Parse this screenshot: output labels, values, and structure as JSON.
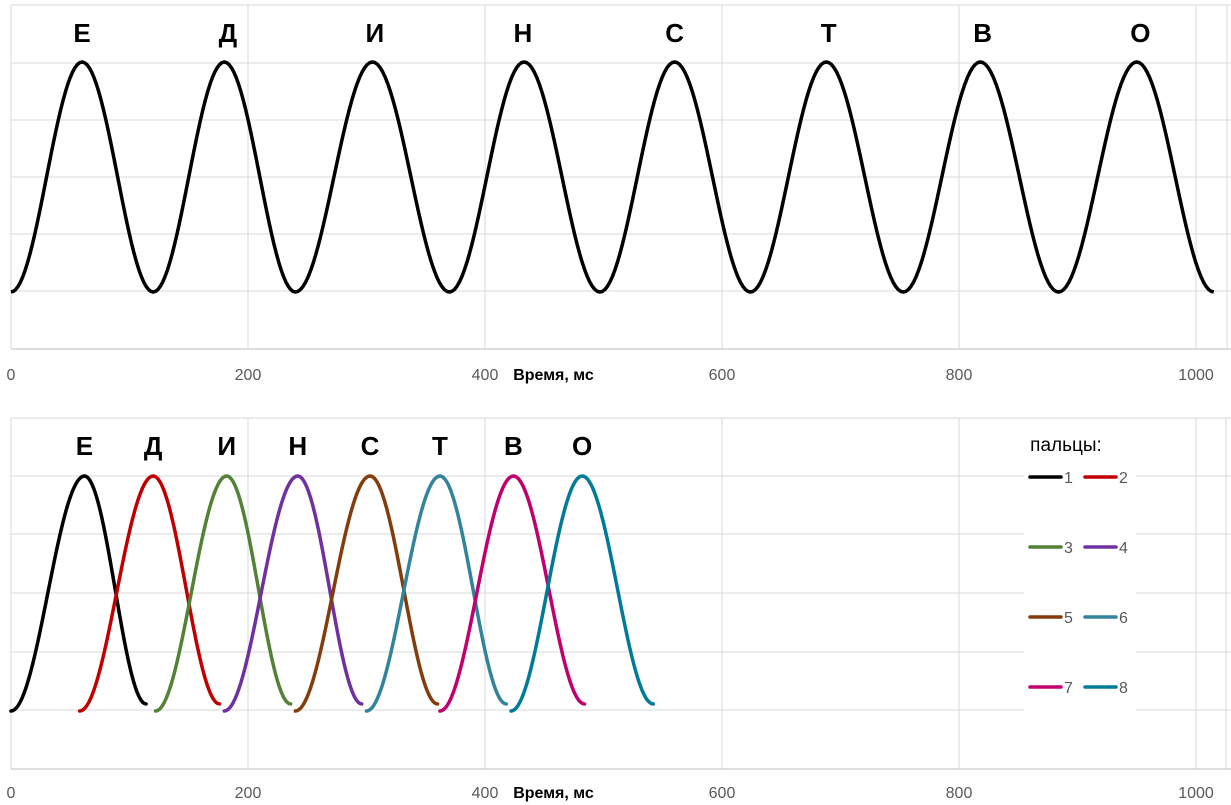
{
  "chart_data": [
    {
      "type": "line",
      "xlabel": "Время, мс",
      "xlim": [
        0,
        1020
      ],
      "x_ticks": [
        "0",
        "200",
        "400",
        "600",
        "800",
        "1000"
      ],
      "grid": true,
      "series": [
        {
          "color": "#000000",
          "x": [
            0,
            60,
            120,
            180,
            240,
            305,
            370,
            433,
            497,
            560,
            624,
            688,
            753,
            818,
            884,
            950,
            1015
          ],
          "y": [
            0,
            1,
            0,
            1,
            0,
            1,
            0,
            1,
            0,
            1,
            0,
            1,
            0,
            1,
            0,
            1,
            0
          ]
        }
      ],
      "annotations": [
        {
          "text": "Е",
          "x": 60
        },
        {
          "text": "Д",
          "x": 183
        },
        {
          "text": "И",
          "x": 307
        },
        {
          "text": "Н",
          "x": 432
        },
        {
          "text": "С",
          "x": 560
        },
        {
          "text": "Т",
          "x": 690
        },
        {
          "text": "В",
          "x": 820
        },
        {
          "text": "О",
          "x": 953
        }
      ]
    },
    {
      "type": "line",
      "xlabel": "Время, мс",
      "xlim": [
        0,
        1020
      ],
      "x_ticks": [
        "0",
        "200",
        "400",
        "600",
        "800",
        "1000"
      ],
      "grid": true,
      "legend": {
        "title": "пальцы:",
        "position": "right"
      },
      "series": [
        {
          "name": "1",
          "color": "#000000",
          "start": 0,
          "peak": 62,
          "end": 114
        },
        {
          "name": "2",
          "color": "#c00000",
          "start": 58,
          "peak": 120,
          "end": 176
        },
        {
          "name": "3",
          "color": "#538135",
          "start": 122,
          "peak": 182,
          "end": 236
        },
        {
          "name": "4",
          "color": "#7030a0",
          "start": 180,
          "peak": 242,
          "end": 296
        },
        {
          "name": "5",
          "color": "#843c0c",
          "start": 240,
          "peak": 303,
          "end": 360
        },
        {
          "name": "6",
          "color": "#31849b",
          "start": 300,
          "peak": 362,
          "end": 418
        },
        {
          "name": "7",
          "color": "#c0006e",
          "start": 362,
          "peak": 424,
          "end": 484
        },
        {
          "name": "8",
          "color": "#007a99",
          "start": 422,
          "peak": 482,
          "end": 542
        }
      ],
      "annotations": [
        {
          "text": "Е",
          "x": 62
        },
        {
          "text": "Д",
          "x": 120
        },
        {
          "text": "И",
          "x": 182
        },
        {
          "text": "Н",
          "x": 242
        },
        {
          "text": "С",
          "x": 303
        },
        {
          "text": "Т",
          "x": 362
        },
        {
          "text": "В",
          "x": 424
        },
        {
          "text": "О",
          "x": 482
        }
      ]
    }
  ]
}
